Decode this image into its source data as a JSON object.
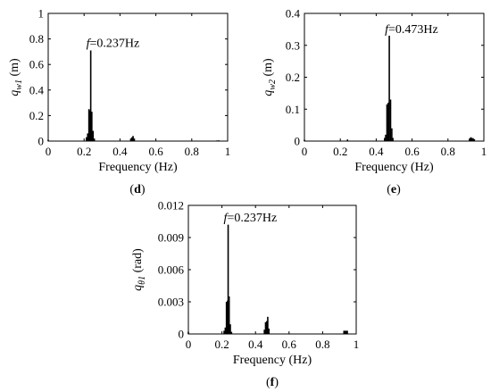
{
  "chart_data": [
    {
      "panel": "d",
      "panel_label": "(d)",
      "type": "bar",
      "xlabel": "Frequency (Hz)",
      "ylabel_main": "q",
      "ylabel_sub": "w1",
      "ylabel_unit": "(m)",
      "xlim": [
        0,
        1
      ],
      "ylim": [
        0,
        1
      ],
      "x_ticks": [
        0,
        0.2,
        0.4,
        0.6,
        0.8,
        1
      ],
      "x_tick_labels": [
        "0",
        "0.2",
        "0.4",
        "0.6",
        "0.8",
        "1"
      ],
      "y_ticks": [
        0,
        0.2,
        0.4,
        0.6,
        0.8,
        1
      ],
      "y_tick_labels": [
        "0",
        "0.2",
        "0.4",
        "0.6",
        "0.8",
        "1"
      ],
      "annotation_prefix": "f",
      "annotation_value": "=0.237Hz",
      "annotation_x": 0.237,
      "annotation_y": 0.73,
      "points": [
        {
          "x": 0.0,
          "y": 0.01
        },
        {
          "x": 0.213,
          "y": 0.03
        },
        {
          "x": 0.22,
          "y": 0.06
        },
        {
          "x": 0.227,
          "y": 0.25
        },
        {
          "x": 0.233,
          "y": 0.24
        },
        {
          "x": 0.237,
          "y": 0.71
        },
        {
          "x": 0.243,
          "y": 0.23
        },
        {
          "x": 0.25,
          "y": 0.08
        },
        {
          "x": 0.257,
          "y": 0.02
        },
        {
          "x": 0.46,
          "y": 0.02
        },
        {
          "x": 0.467,
          "y": 0.03
        },
        {
          "x": 0.473,
          "y": 0.04
        },
        {
          "x": 0.48,
          "y": 0.02
        },
        {
          "x": 0.94,
          "y": 0.005
        },
        {
          "x": 0.95,
          "y": 0.006
        }
      ]
    },
    {
      "panel": "e",
      "panel_label": "(e)",
      "type": "bar",
      "xlabel": "Frequency (Hz)",
      "ylabel_main": "q",
      "ylabel_sub": "w2",
      "ylabel_unit": "(m)",
      "xlim": [
        0,
        1
      ],
      "ylim": [
        0,
        0.4
      ],
      "x_ticks": [
        0,
        0.2,
        0.4,
        0.6,
        0.8,
        1
      ],
      "x_tick_labels": [
        "0",
        "0.2",
        "0.4",
        "0.6",
        "0.8",
        "1"
      ],
      "y_ticks": [
        0,
        0.1,
        0.2,
        0.3,
        0.4
      ],
      "y_tick_labels": [
        "0",
        "0.1",
        "0.2",
        "0.3",
        "0.4"
      ],
      "annotation_prefix": "f",
      "annotation_value": "=0.473Hz",
      "annotation_x": 0.473,
      "annotation_y": 0.335,
      "points": [
        {
          "x": 0.0,
          "y": 0.004
        },
        {
          "x": 0.24,
          "y": 0.005
        },
        {
          "x": 0.447,
          "y": 0.01
        },
        {
          "x": 0.453,
          "y": 0.02
        },
        {
          "x": 0.46,
          "y": 0.115
        },
        {
          "x": 0.467,
          "y": 0.12
        },
        {
          "x": 0.473,
          "y": 0.33
        },
        {
          "x": 0.48,
          "y": 0.13
        },
        {
          "x": 0.487,
          "y": 0.04
        },
        {
          "x": 0.493,
          "y": 0.01
        },
        {
          "x": 0.92,
          "y": 0.008
        },
        {
          "x": 0.927,
          "y": 0.012
        },
        {
          "x": 0.933,
          "y": 0.01
        },
        {
          "x": 0.94,
          "y": 0.009
        },
        {
          "x": 0.947,
          "y": 0.006
        }
      ]
    },
    {
      "panel": "f",
      "panel_label": "(f)",
      "type": "bar",
      "xlabel": "Frequency (Hz)",
      "ylabel_main": "q",
      "ylabel_sub": "θ1",
      "ylabel_unit": "(rad)",
      "xlim": [
        0,
        1
      ],
      "ylim": [
        0,
        0.012
      ],
      "x_ticks": [
        0,
        0.2,
        0.4,
        0.6,
        0.8,
        1
      ],
      "x_tick_labels": [
        "0",
        "0.2",
        "0.4",
        "0.6",
        "0.8",
        "1"
      ],
      "y_ticks": [
        0,
        0.003,
        0.006,
        0.009,
        0.012
      ],
      "y_tick_labels": [
        "0",
        "0.003",
        "0.006",
        "0.009",
        "0.012"
      ],
      "annotation_prefix": "f",
      "annotation_value": "=0.237Hz",
      "annotation_x": 0.237,
      "annotation_y": 0.0104,
      "points": [
        {
          "x": 0.0,
          "y": 0.0002
        },
        {
          "x": 0.213,
          "y": 0.0003
        },
        {
          "x": 0.22,
          "y": 0.0006
        },
        {
          "x": 0.227,
          "y": 0.003
        },
        {
          "x": 0.233,
          "y": 0.0031
        },
        {
          "x": 0.237,
          "y": 0.0102
        },
        {
          "x": 0.243,
          "y": 0.0035
        },
        {
          "x": 0.25,
          "y": 0.0009
        },
        {
          "x": 0.257,
          "y": 0.0002
        },
        {
          "x": 0.453,
          "y": 0.0004
        },
        {
          "x": 0.46,
          "y": 0.0011
        },
        {
          "x": 0.467,
          "y": 0.0012
        },
        {
          "x": 0.473,
          "y": 0.0016
        },
        {
          "x": 0.48,
          "y": 0.0005
        },
        {
          "x": 0.927,
          "y": 0.0003
        },
        {
          "x": 0.933,
          "y": 0.0003
        },
        {
          "x": 0.94,
          "y": 0.0003
        },
        {
          "x": 0.947,
          "y": 0.0003
        }
      ]
    }
  ]
}
